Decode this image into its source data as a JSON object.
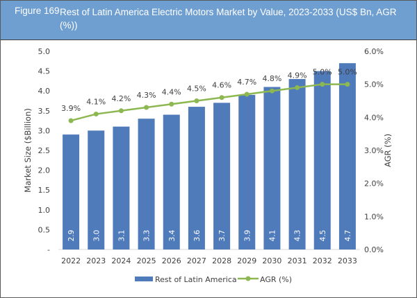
{
  "figure": {
    "number": "Figure 169",
    "title": "Rest of Latin America Electric Motors Market by Value, 2023-2033 (US$ Bn, AGR (%))"
  },
  "colors": {
    "title_bg": "#6f9fd0",
    "bar": "#4f7bbb",
    "line": "#8db851"
  },
  "chart_data": {
    "type": "bar",
    "title": "Rest of Latin America Electric Motors Market by Value, 2023-2033 (US$ Bn, AGR (%))",
    "categories": [
      "2022",
      "2023",
      "2024",
      "2025",
      "2026",
      "2027",
      "2028",
      "2029",
      "2030",
      "2031",
      "2032",
      "2033"
    ],
    "series": [
      {
        "name": "Rest of Latin America",
        "type": "bar",
        "axis": "left",
        "values": [
          2.9,
          3.0,
          3.1,
          3.3,
          3.4,
          3.6,
          3.7,
          3.9,
          4.1,
          4.3,
          4.5,
          4.7
        ],
        "labels": [
          "2.9",
          "3.0",
          "3.1",
          "3.3",
          "3.4",
          "3.6",
          "3.7",
          "3.9",
          "4.1",
          "4.3",
          "4.5",
          "4.7"
        ]
      },
      {
        "name": "AGR (%)",
        "type": "line",
        "axis": "right",
        "values": [
          3.9,
          4.1,
          4.2,
          4.3,
          4.4,
          4.5,
          4.6,
          4.7,
          4.8,
          4.9,
          5.0,
          5.0
        ],
        "labels": [
          "3.9%",
          "4.1%",
          "4.2%",
          "4.3%",
          "4.4%",
          "4.5%",
          "4.6%",
          "4.7%",
          "4.8%",
          "4.9%",
          "5.0%",
          "5.0%"
        ]
      }
    ],
    "xlabel": "",
    "ylabel": "Market Size ($Billion)",
    "ylabel_right": "AGR (%)",
    "ylim": [
      0,
      5.0
    ],
    "ylim_right": [
      0,
      6.0
    ],
    "yticks": [
      "-",
      "0.5",
      "1.0",
      "1.5",
      "2.0",
      "2.5",
      "3.0",
      "3.5",
      "4.0",
      "4.5",
      "5.0"
    ],
    "yticks_right": [
      "0.0%",
      "1.0%",
      "2.0%",
      "3.0%",
      "4.0%",
      "5.0%",
      "6.0%"
    ],
    "grid": false,
    "legend": {
      "placement": "bottom",
      "entries": [
        "Rest of Latin America",
        "AGR (%)"
      ]
    }
  }
}
